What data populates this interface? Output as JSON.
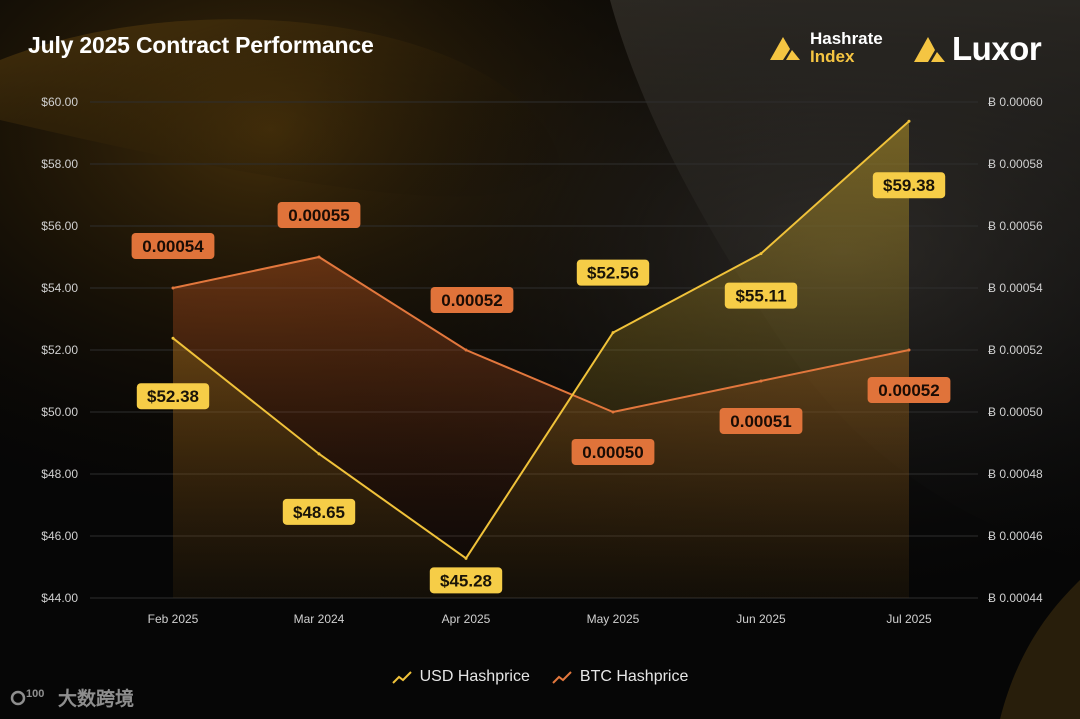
{
  "header": {
    "title": "July 2025 Contract Performance",
    "brand_index_line1": "Hashrate",
    "brand_index_line2": "Index",
    "brand_luxor": "Luxor"
  },
  "watermark": {
    "text": "大数跨境",
    "logo_text": "100"
  },
  "colors": {
    "usd": "#f0c23a",
    "btc": "#e2773d",
    "usd_label_bg": "#f6cd47",
    "btc_label_bg": "#e0733a",
    "grid": "#2e2e2e",
    "axis_text": "#d0d0d0"
  },
  "chart_data": {
    "type": "line",
    "categories": [
      "Feb 2025",
      "Mar 2024",
      "Apr 2025",
      "May 2025",
      "Jun 2025",
      "Jul 2025"
    ],
    "series": [
      {
        "name": "USD Hashprice",
        "axis": "left",
        "values": [
          52.38,
          48.65,
          45.28,
          52.56,
          55.11,
          59.38
        ],
        "labels": [
          "$52.38",
          "$48.65",
          "$45.28",
          "$52.56",
          "$55.11",
          "$59.38"
        ],
        "label_side": [
          "below",
          "below",
          "below",
          "above",
          "above",
          "below"
        ]
      },
      {
        "name": "BTC Hashprice",
        "axis": "right",
        "values": [
          0.00054,
          0.00055,
          0.00052,
          0.0005,
          0.00051,
          0.00052
        ],
        "labels": [
          "0.00054",
          "0.00055",
          "0.00052",
          "0.00050",
          "0.00051",
          "0.00052"
        ],
        "label_side": [
          "above",
          "above",
          "above",
          "below",
          "below",
          "below"
        ]
      }
    ],
    "y_left": {
      "min": 44,
      "max": 60,
      "ticks": [
        "$60.00",
        "$58.00",
        "$56.00",
        "$54.00",
        "$52.00",
        "$50.00",
        "$48.00",
        "$46.00",
        "$44.00"
      ]
    },
    "y_right": {
      "min": 0.00044,
      "max": 0.0006,
      "ticks": [
        "Ƀ 0.00060",
        "Ƀ 0.00058",
        "Ƀ 0.00056",
        "Ƀ 0.00054",
        "Ƀ 0.00052",
        "Ƀ 0.00050",
        "Ƀ 0.00048",
        "Ƀ 0.00046",
        "Ƀ 0.00044"
      ]
    },
    "grid": true,
    "legend": "bottom-center"
  }
}
